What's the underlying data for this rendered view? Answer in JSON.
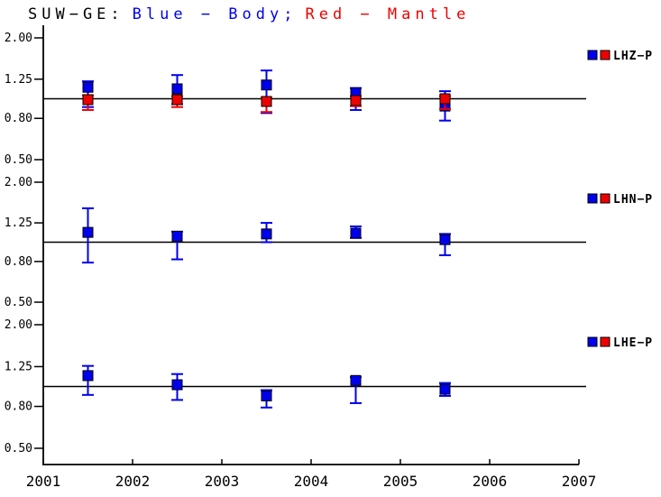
{
  "title": {
    "station": "SUW−GE:",
    "body_label": "Blue − Body;",
    "mantle_label": "Red − Mantle"
  },
  "colors": {
    "body": "#0000ee",
    "mantle": "#ee0000",
    "axis": "#000000",
    "background": "#ffffff"
  },
  "x_axis": {
    "min": 2001,
    "max": 2007,
    "tick_labels": [
      "2001",
      "2002",
      "2003",
      "2004",
      "2005",
      "2006",
      "2007"
    ]
  },
  "legend": [
    {
      "label": "LHZ−P"
    },
    {
      "label": "LHN−P"
    },
    {
      "label": "LHE−P"
    }
  ],
  "chart_data": [
    {
      "type": "scatter",
      "panel": "LHZ−P",
      "yscale": "log",
      "yticks": [
        2.0,
        1.25,
        0.8,
        0.5
      ],
      "ytick_labels": [
        "2.00",
        "1.25",
        "0.80",
        "0.50"
      ],
      "reference_line": 1.0,
      "x": [
        2001.5,
        2002.5,
        2003.5,
        2004.5,
        2005.5
      ],
      "series": [
        {
          "name": "Body",
          "color_key": "body",
          "values": [
            1.14,
            1.12,
            1.17,
            1.07,
            0.92
          ],
          "err_lo": [
            0.91,
            0.94,
            0.85,
            0.88,
            0.78
          ],
          "err_hi": [
            1.22,
            1.31,
            1.38,
            1.13,
            1.09
          ]
        },
        {
          "name": "Mantle",
          "color_key": "mantle",
          "values": [
            0.99,
            0.99,
            0.97,
            0.98,
            1.0
          ],
          "err_lo": [
            0.88,
            0.91,
            0.86,
            0.92,
            0.89
          ],
          "err_hi": [
            1.04,
            1.03,
            1.01,
            1.03,
            1.03
          ]
        }
      ]
    },
    {
      "type": "scatter",
      "panel": "LHN−P",
      "yscale": "log",
      "yticks": [
        2.0,
        1.25,
        0.8,
        0.5
      ],
      "ytick_labels": [
        "2.00",
        "1.25",
        "0.80",
        "0.50"
      ],
      "reference_line": 1.0,
      "x": [
        2001.5,
        2002.5,
        2003.5,
        2004.5,
        2005.5
      ],
      "series": [
        {
          "name": "Body",
          "color_key": "body",
          "values": [
            1.12,
            1.07,
            1.1,
            1.11,
            1.03
          ],
          "err_lo": [
            0.79,
            0.82,
            1.0,
            1.05,
            0.86
          ],
          "err_hi": [
            1.48,
            1.13,
            1.25,
            1.2,
            1.1
          ]
        }
      ]
    },
    {
      "type": "scatter",
      "panel": "LHE−P",
      "yscale": "log",
      "yticks": [
        2.0,
        1.25,
        0.8,
        0.5
      ],
      "ytick_labels": [
        "2.00",
        "1.25",
        "0.80",
        "0.50"
      ],
      "reference_line": 1.0,
      "x": [
        2001.5,
        2002.5,
        2003.5,
        2004.5,
        2005.5
      ],
      "series": [
        {
          "name": "Body",
          "color_key": "body",
          "values": [
            1.13,
            1.02,
            0.9,
            1.07,
            0.97
          ],
          "err_lo": [
            0.91,
            0.86,
            0.79,
            0.83,
            0.9
          ],
          "err_hi": [
            1.26,
            1.15,
            0.96,
            1.11,
            1.04
          ]
        }
      ]
    }
  ]
}
